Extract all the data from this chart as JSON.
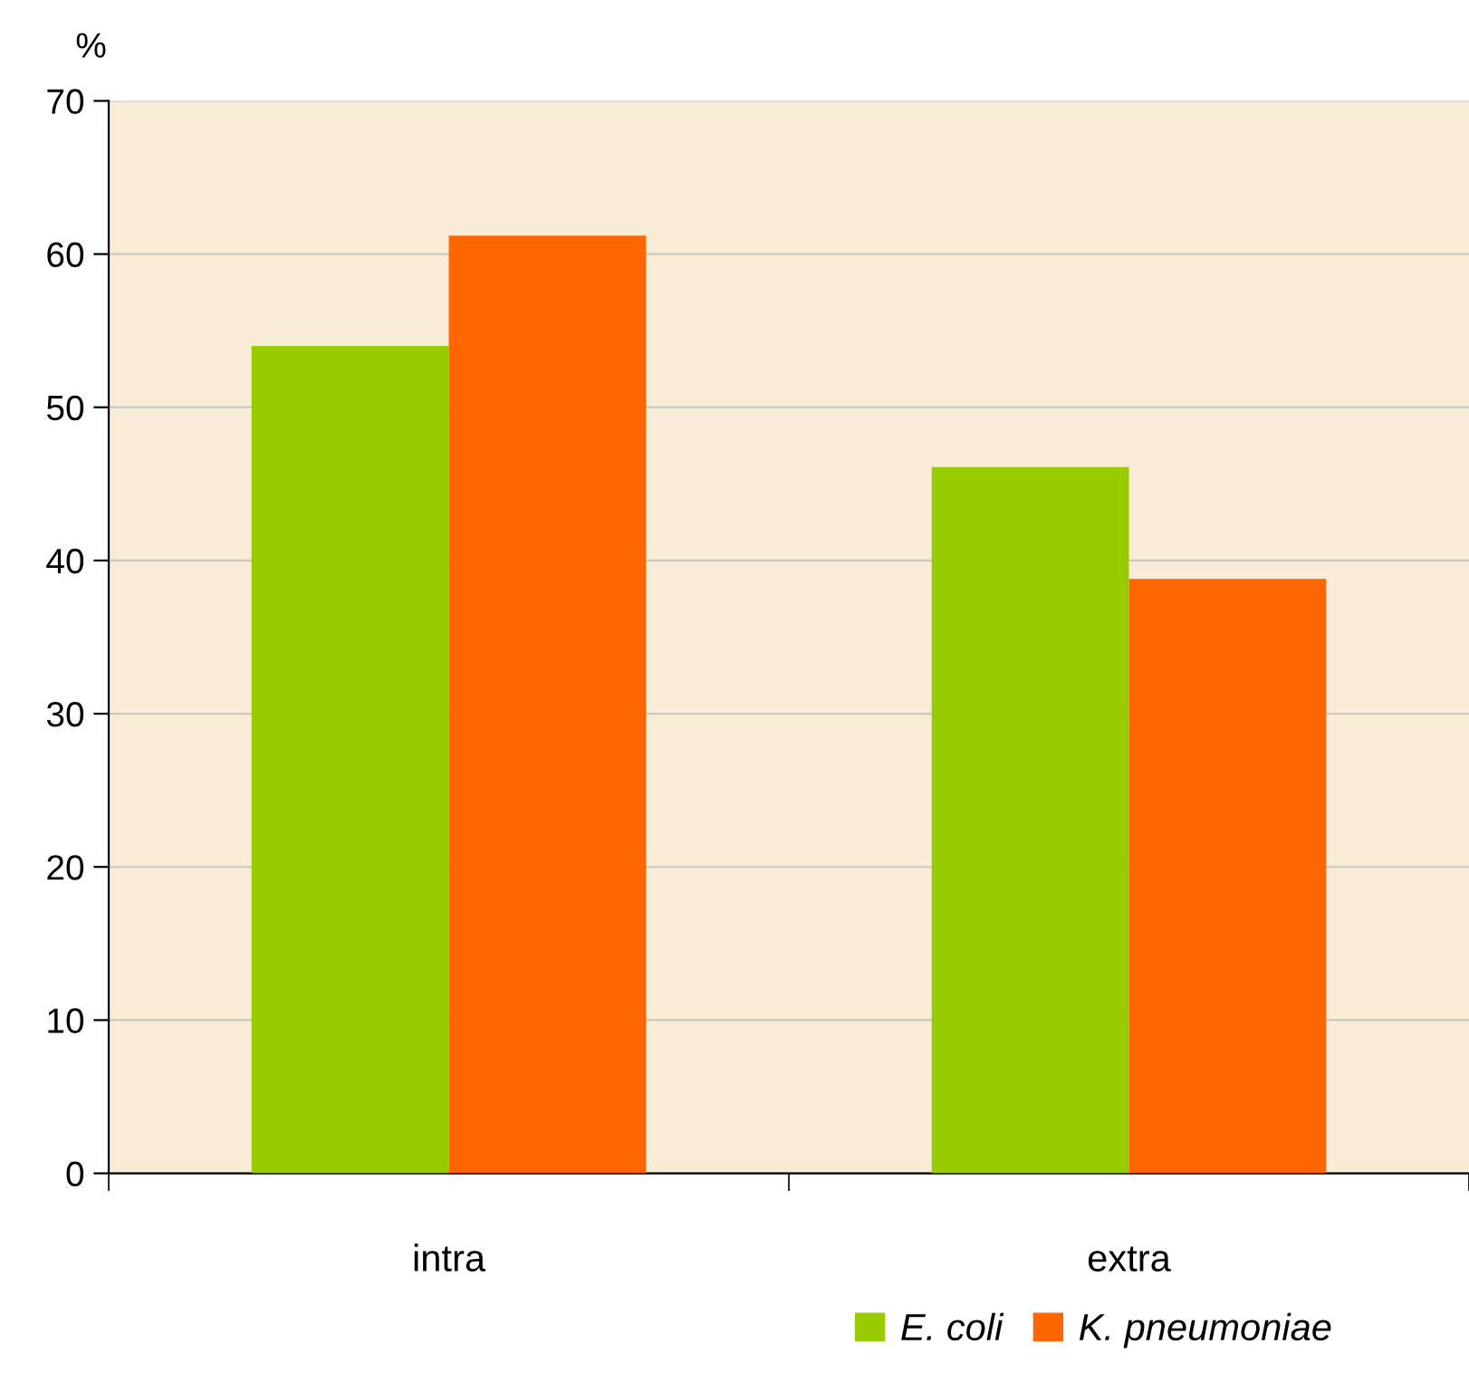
{
  "chart_data": {
    "type": "bar",
    "ylabel": "%",
    "categories": [
      "intra",
      "extra"
    ],
    "series": [
      {
        "name": "E. coli",
        "color": "#99cc00",
        "values": [
          54.0,
          46.1
        ]
      },
      {
        "name": "K. pneumoniae",
        "color": "#ff6600",
        "values": [
          61.2,
          38.8
        ]
      }
    ],
    "ylim": [
      0,
      70
    ],
    "yticks": [
      0,
      10,
      20,
      30,
      40,
      50,
      60,
      70
    ],
    "grid": "y",
    "legend": "bottom right"
  }
}
